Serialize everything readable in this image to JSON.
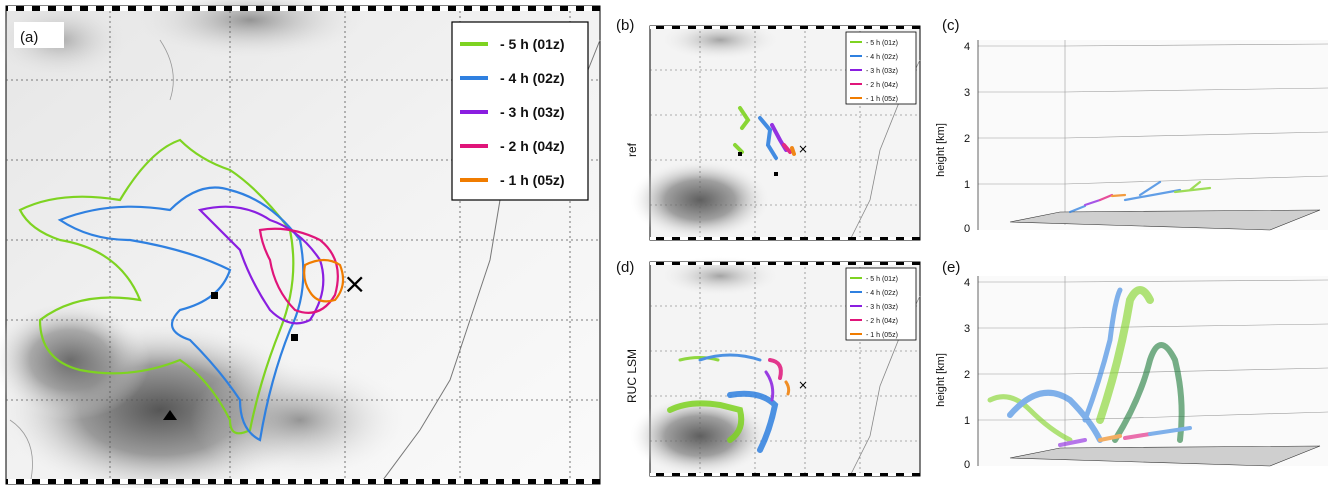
{
  "panels": {
    "a": {
      "label": "(a)"
    },
    "b": {
      "label": "(b)",
      "row_label": "ref"
    },
    "c": {
      "label": "(c)",
      "ylabel": "height [km]",
      "yticks": [
        "0",
        "1",
        "2",
        "3",
        "4"
      ]
    },
    "d": {
      "label": "(d)",
      "row_label": "RUC LSM"
    },
    "e": {
      "label": "(e)",
      "ylabel": "height [km]",
      "yticks": [
        "0",
        "1",
        "2",
        "3",
        "4"
      ]
    }
  },
  "legend": [
    {
      "label": "- 5 h (01z)",
      "color": "#7ed321"
    },
    {
      "label": "- 4 h (02z)",
      "color": "#2f80e0"
    },
    {
      "label": "- 3 h (03z)",
      "color": "#8a1ee0"
    },
    {
      "label": "- 2 h (04z)",
      "color": "#e0157a"
    },
    {
      "label": "- 1 h (05z)",
      "color": "#f07c00"
    }
  ],
  "markers": {
    "cross": "×"
  }
}
